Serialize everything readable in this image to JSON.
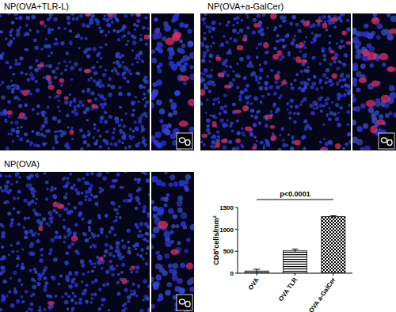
{
  "panels": [
    {
      "title": "NP(OVA+TLR-L)"
    },
    {
      "title": "NP(OVA+a-GalCer)"
    },
    {
      "title": "NP(OVA)"
    }
  ],
  "chart_data": {
    "type": "bar",
    "categories": [
      "OVA",
      "OVA TLR",
      "OVA a-GalCer"
    ],
    "values": [
      50,
      510,
      1290
    ],
    "errors": [
      40,
      40,
      20
    ],
    "color": "#000000",
    "y_label": "CD8⁺cells/mm²",
    "annotation": "p<0.0001",
    "ylim": [
      0,
      1500
    ],
    "yticks": [
      0,
      500,
      1000,
      1500
    ],
    "grid": false
  }
}
